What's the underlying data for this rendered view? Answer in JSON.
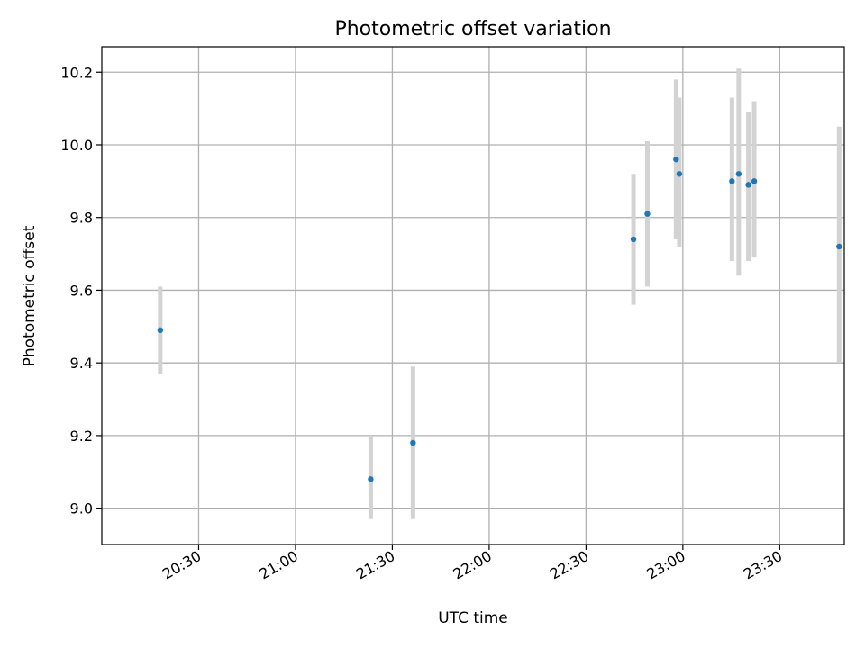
{
  "chart_data": {
    "type": "scatter",
    "title": "Photometric offset variation",
    "xlabel": "UTC time",
    "ylabel": "Photometric offset",
    "grid": true,
    "xlim_minutes": [
      1200,
      1430
    ],
    "ylim": [
      8.9,
      10.27
    ],
    "x_ticks": [
      {
        "minutes": 1230,
        "label": "20:30"
      },
      {
        "minutes": 1260,
        "label": "21:00"
      },
      {
        "minutes": 1290,
        "label": "21:30"
      },
      {
        "minutes": 1320,
        "label": "22:00"
      },
      {
        "minutes": 1350,
        "label": "22:30"
      },
      {
        "minutes": 1380,
        "label": "23:00"
      },
      {
        "minutes": 1410,
        "label": "23:30"
      }
    ],
    "y_ticks": [
      {
        "value": 9.0,
        "label": "9.0"
      },
      {
        "value": 9.2,
        "label": "9.2"
      },
      {
        "value": 9.4,
        "label": "9.4"
      },
      {
        "value": 9.6,
        "label": "9.6"
      },
      {
        "value": 9.8,
        "label": "9.8"
      },
      {
        "value": 10.0,
        "label": "10.0"
      },
      {
        "value": 10.2,
        "label": "10.2"
      }
    ],
    "points": [
      {
        "time": "20:18",
        "minutes": 1218.1,
        "value": 9.49,
        "low": 9.37,
        "high": 9.61
      },
      {
        "time": "21:23",
        "minutes": 1283.3,
        "value": 9.08,
        "low": 8.97,
        "high": 9.2
      },
      {
        "time": "21:36",
        "minutes": 1296.4,
        "value": 9.18,
        "low": 8.97,
        "high": 9.39
      },
      {
        "time": "22:45",
        "minutes": 1364.7,
        "value": 9.74,
        "low": 9.56,
        "high": 9.92
      },
      {
        "time": "22:49",
        "minutes": 1369.0,
        "value": 9.81,
        "low": 9.61,
        "high": 10.01
      },
      {
        "time": "22:58",
        "minutes": 1377.9,
        "value": 9.96,
        "low": 9.74,
        "high": 10.18
      },
      {
        "time": "22:59",
        "minutes": 1378.9,
        "value": 9.92,
        "low": 9.72,
        "high": 10.13
      },
      {
        "time": "23:15",
        "minutes": 1395.2,
        "value": 9.9,
        "low": 9.68,
        "high": 10.13
      },
      {
        "time": "23:17",
        "minutes": 1397.3,
        "value": 9.92,
        "low": 9.64,
        "high": 10.21
      },
      {
        "time": "23:20",
        "minutes": 1400.3,
        "value": 9.89,
        "low": 9.68,
        "high": 10.09
      },
      {
        "time": "23:22",
        "minutes": 1402.1,
        "value": 9.9,
        "low": 9.69,
        "high": 10.12
      },
      {
        "time": "23:48",
        "minutes": 1428.4,
        "value": 9.72,
        "low": 9.4,
        "high": 10.05
      }
    ],
    "colors": {
      "marker": "#1f77b4",
      "errorbar": "#d3d3d3",
      "grid": "#b0b0b0",
      "axes": "#000000"
    }
  }
}
